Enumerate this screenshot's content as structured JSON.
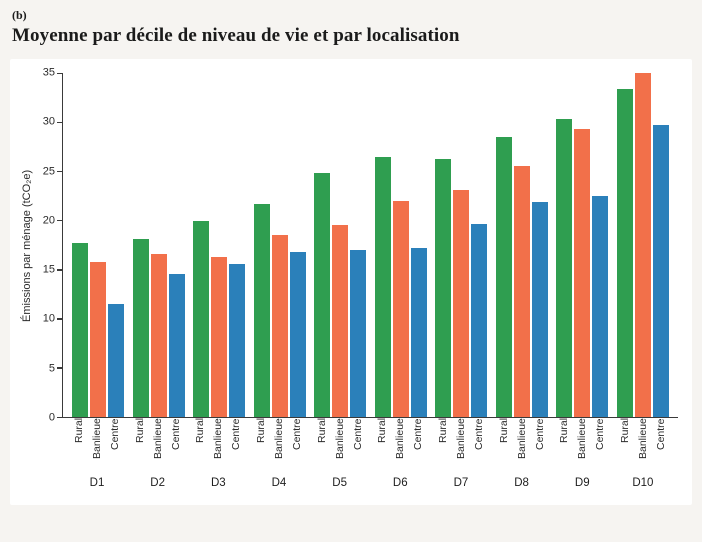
{
  "header": {
    "panel_label": "(b)",
    "title": "Moyenne par décile de niveau de vie et par localisation"
  },
  "chart_data": {
    "type": "bar",
    "title": "Moyenne par décile de niveau de vie et par localisation",
    "ylabel": "Émissions par ménage (tCO₂e)",
    "ylim": [
      0,
      35
    ],
    "yticks": [
      0,
      5,
      10,
      15,
      20,
      25,
      30,
      35
    ],
    "grid": false,
    "legend": "none (series names repeated as x tick labels)",
    "categories": [
      "D1",
      "D2",
      "D3",
      "D4",
      "D5",
      "D6",
      "D7",
      "D8",
      "D9",
      "D10"
    ],
    "series": [
      {
        "name": "Rural",
        "color": "#2f9e50",
        "values": [
          17.7,
          18.1,
          19.9,
          21.7,
          24.8,
          26.5,
          26.3,
          28.5,
          30.3,
          33.4
        ]
      },
      {
        "name": "Banlieue",
        "color": "#f2704a",
        "values": [
          15.8,
          16.6,
          16.3,
          18.5,
          19.5,
          22.0,
          23.1,
          25.5,
          29.3,
          35.0
        ]
      },
      {
        "name": "Centre",
        "color": "#2b80ba",
        "values": [
          11.5,
          14.6,
          15.6,
          16.8,
          17.0,
          17.2,
          19.6,
          21.9,
          22.5,
          29.7
        ]
      }
    ],
    "axis_color": "#3a3a3a"
  }
}
